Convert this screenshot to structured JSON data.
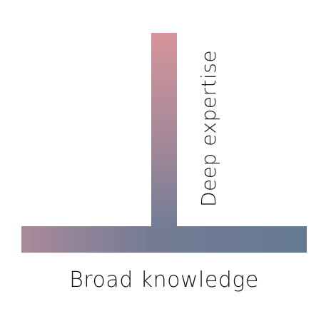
{
  "diagram": {
    "vertical_label": "Deep expertise",
    "horizontal_label": "Broad knowledge",
    "colors": {
      "gradient_top_pink": "#d6959a",
      "gradient_mid_mauve": "#8a7a93",
      "gradient_bottom_slate": "#6a7b94",
      "gradient_right_blue": "#647a92",
      "text": "#111111"
    }
  }
}
